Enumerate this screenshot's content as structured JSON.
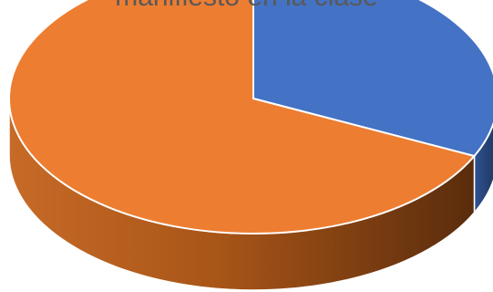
{
  "chart_data": {
    "type": "pie",
    "title": "manifiesto en la clase",
    "style": "3d",
    "slices": [
      {
        "label": "",
        "value": 32,
        "color": "#4472C4"
      },
      {
        "label": "",
        "value": 68,
        "color": "#ED7D31"
      }
    ],
    "start_angle_deg": 0,
    "legend": "none"
  }
}
